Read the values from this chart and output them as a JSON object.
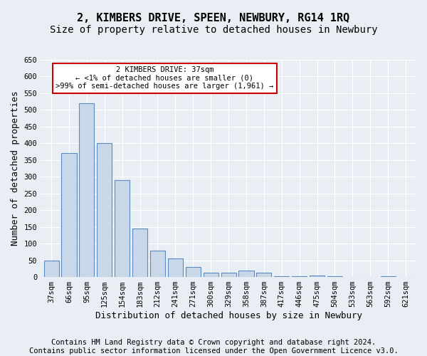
{
  "title": "2, KIMBERS DRIVE, SPEEN, NEWBURY, RG14 1RQ",
  "subtitle": "Size of property relative to detached houses in Newbury",
  "xlabel": "Distribution of detached houses by size in Newbury",
  "ylabel": "Number of detached properties",
  "categories": [
    "37sqm",
    "66sqm",
    "95sqm",
    "125sqm",
    "154sqm",
    "183sqm",
    "212sqm",
    "241sqm",
    "271sqm",
    "300sqm",
    "329sqm",
    "358sqm",
    "387sqm",
    "417sqm",
    "446sqm",
    "475sqm",
    "504sqm",
    "533sqm",
    "563sqm",
    "592sqm",
    "621sqm"
  ],
  "values": [
    50,
    370,
    520,
    400,
    290,
    145,
    80,
    55,
    30,
    12,
    12,
    20,
    12,
    2,
    2,
    5,
    2,
    0,
    0,
    2,
    0
  ],
  "bar_color": "#c8d8e8",
  "bar_edge_color": "#5a8abf",
  "ylim": [
    0,
    650
  ],
  "yticks": [
    0,
    50,
    100,
    150,
    200,
    250,
    300,
    350,
    400,
    450,
    500,
    550,
    600,
    650
  ],
  "annotation_box_text": "2 KIMBERS DRIVE: 37sqm\n← <1% of detached houses are smaller (0)\n>99% of semi-detached houses are larger (1,961) →",
  "annotation_box_color": "#ffffff",
  "annotation_box_edge_color": "#cc0000",
  "footer_line1": "Contains HM Land Registry data © Crown copyright and database right 2024.",
  "footer_line2": "Contains public sector information licensed under the Open Government Licence v3.0.",
  "background_color": "#e8eef4",
  "grid_color": "#ffffff",
  "title_fontsize": 11,
  "subtitle_fontsize": 10,
  "axis_label_fontsize": 9,
  "tick_fontsize": 7.5,
  "footer_fontsize": 7.5
}
